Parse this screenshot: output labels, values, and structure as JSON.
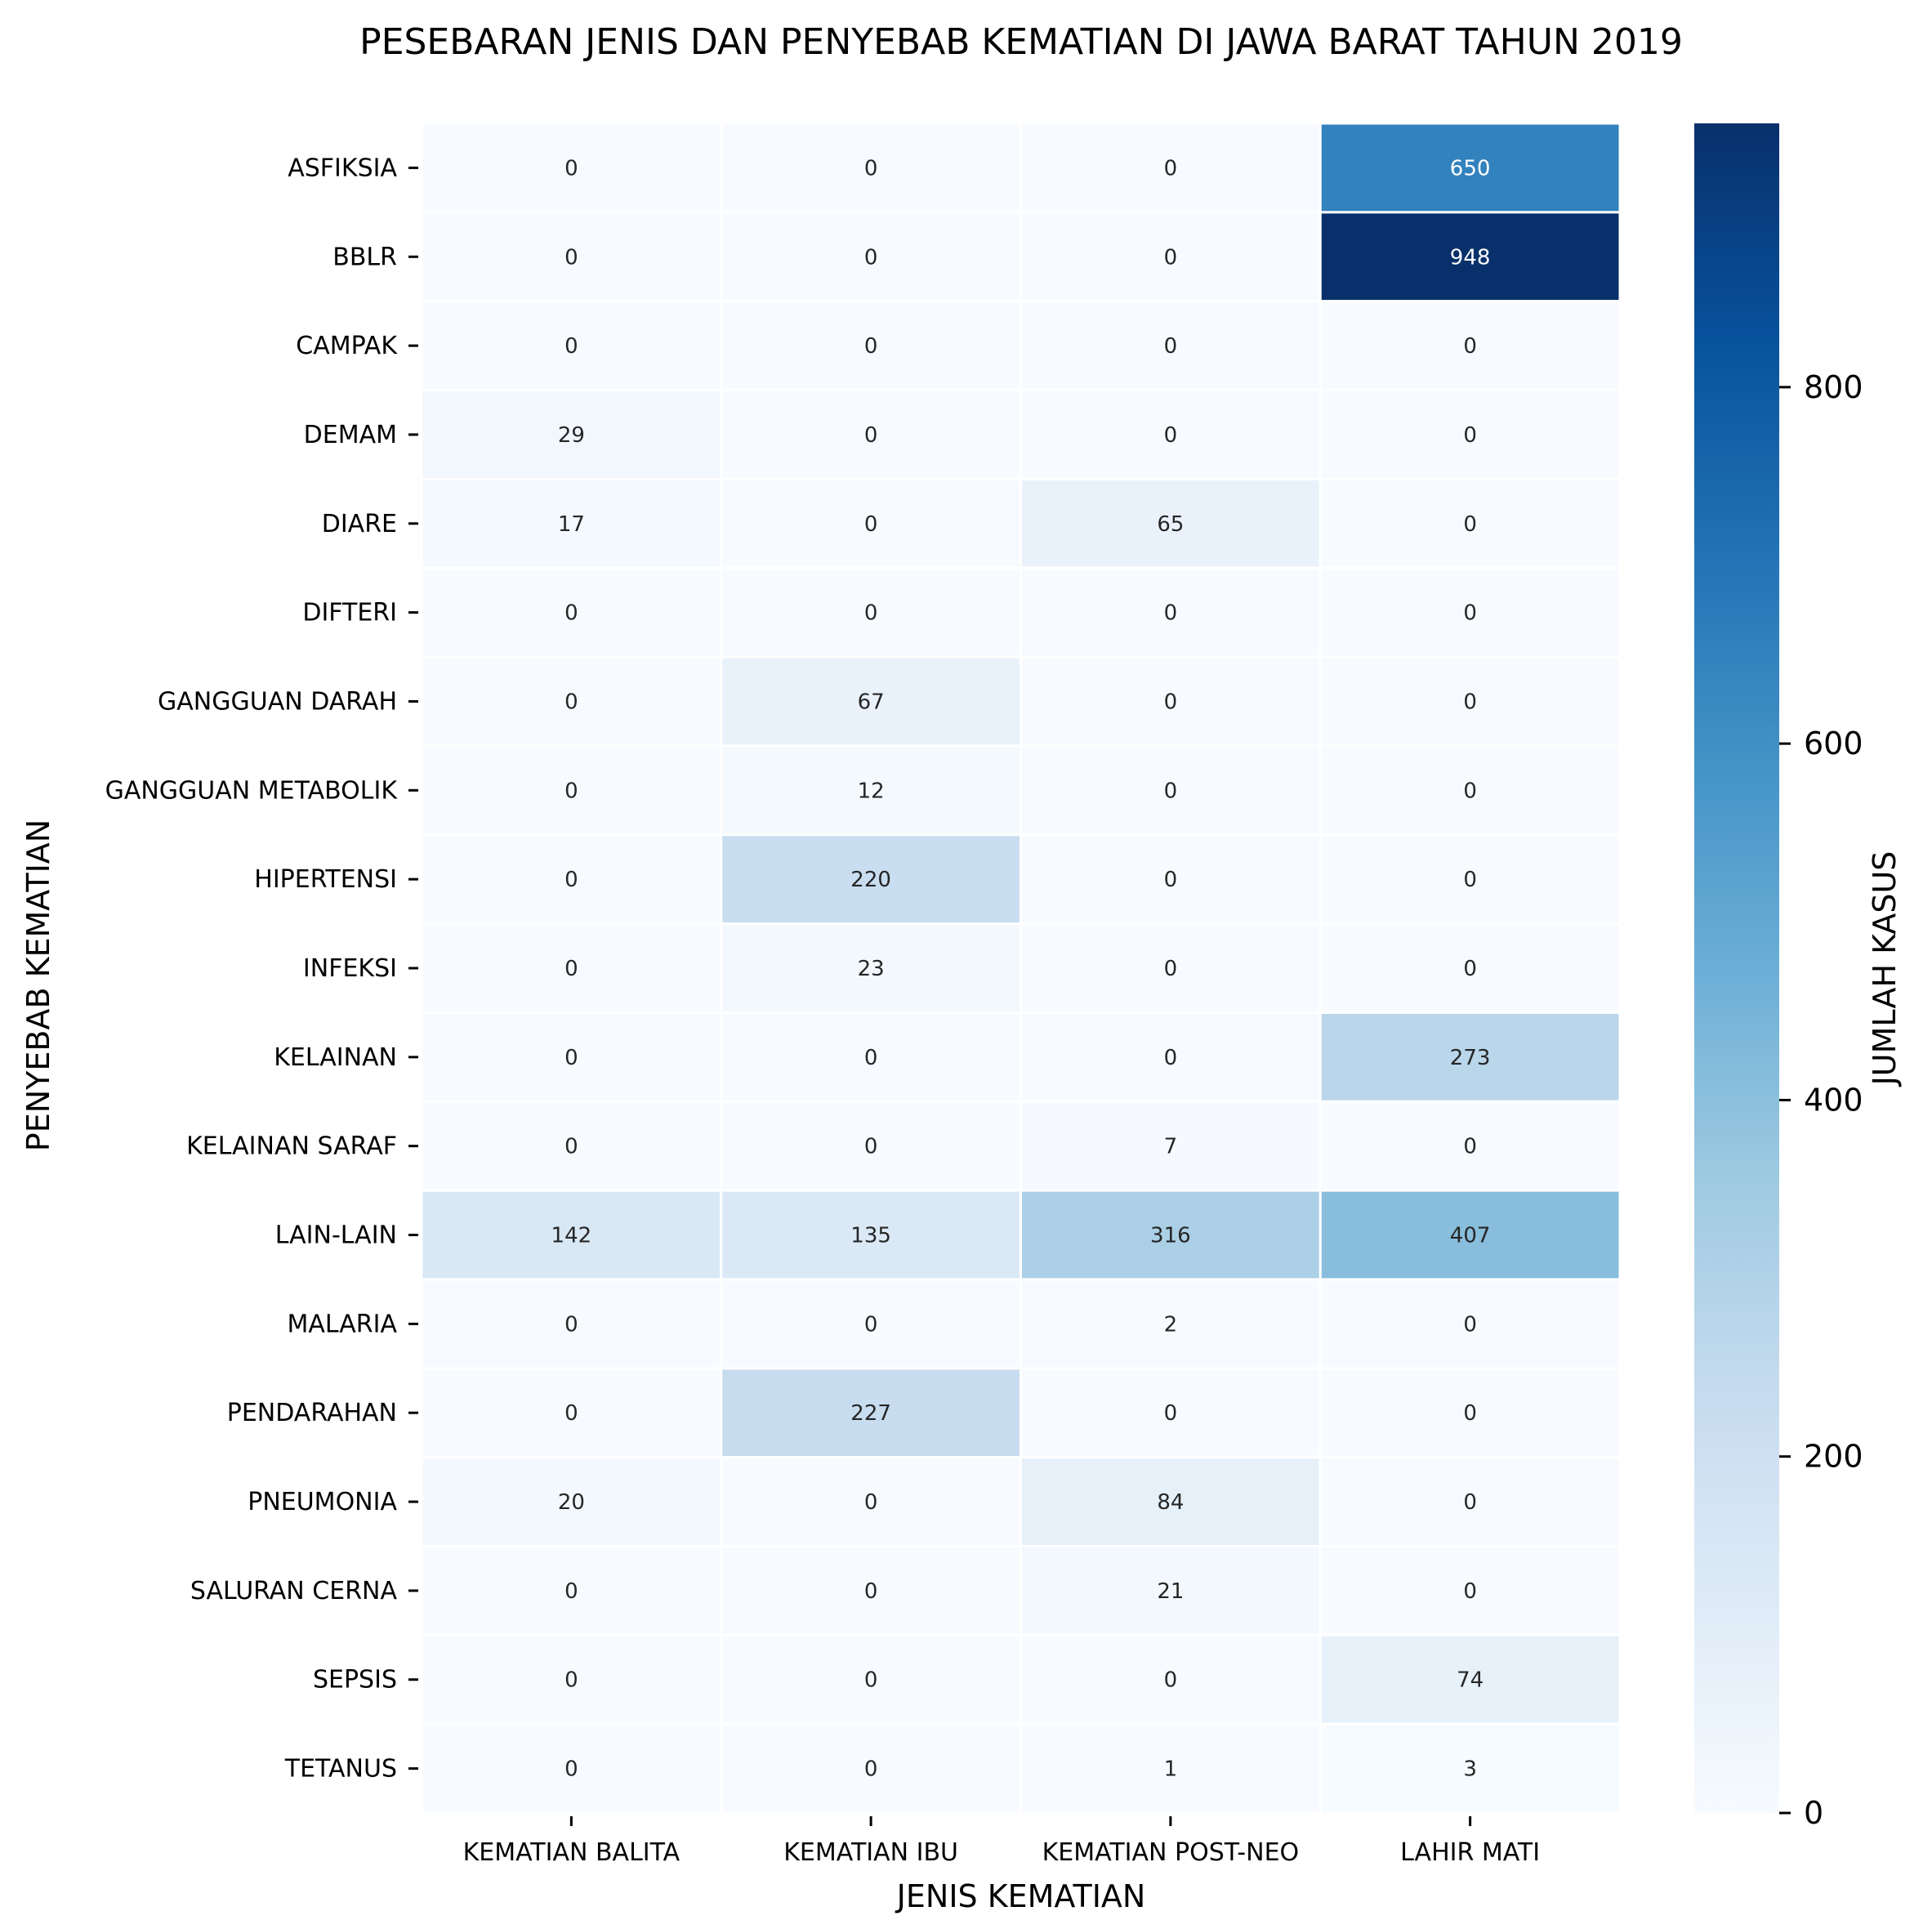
{
  "chart_data": {
    "type": "heatmap",
    "title": "PESEBARAN JENIS DAN PENYEBAB KEMATIAN DI JAWA BARAT TAHUN 2019",
    "xlabel": "JENIS KEMATIAN",
    "ylabel": "PENYEBAB KEMATIAN",
    "colorbar_label": "JUMLAH KASUS",
    "colormap": "Blues",
    "vmin": 0,
    "vmax": 948,
    "colorbar_ticks": [
      0,
      200,
      400,
      600,
      800
    ],
    "x_categories": [
      "KEMATIAN BALITA",
      "KEMATIAN IBU",
      "KEMATIAN POST-NEO",
      "LAHIR MATI"
    ],
    "y_categories": [
      "ASFIKSIA",
      "BBLR",
      "CAMPAK",
      "DEMAM",
      "DIARE",
      "DIFTERI",
      "GANGGUAN DARAH",
      "GANGGUAN METABOLIK",
      "HIPERTENSI",
      "INFEKSI",
      "KELAINAN",
      "KELAINAN SARAF",
      "LAIN-LAIN",
      "MALARIA",
      "PENDARAHAN",
      "PNEUMONIA",
      "SALURAN CERNA",
      "SEPSIS",
      "TETANUS"
    ],
    "values": [
      [
        0,
        0,
        0,
        650
      ],
      [
        0,
        0,
        0,
        948
      ],
      [
        0,
        0,
        0,
        0
      ],
      [
        29,
        0,
        0,
        0
      ],
      [
        17,
        0,
        65,
        0
      ],
      [
        0,
        0,
        0,
        0
      ],
      [
        0,
        67,
        0,
        0
      ],
      [
        0,
        12,
        0,
        0
      ],
      [
        0,
        220,
        0,
        0
      ],
      [
        0,
        23,
        0,
        0
      ],
      [
        0,
        0,
        0,
        273
      ],
      [
        0,
        0,
        7,
        0
      ],
      [
        142,
        135,
        316,
        407
      ],
      [
        0,
        0,
        2,
        0
      ],
      [
        0,
        227,
        0,
        0
      ],
      [
        20,
        0,
        84,
        0
      ],
      [
        0,
        0,
        21,
        0
      ],
      [
        0,
        0,
        0,
        74
      ],
      [
        0,
        0,
        1,
        3
      ]
    ],
    "annotated": true,
    "grid": false
  }
}
